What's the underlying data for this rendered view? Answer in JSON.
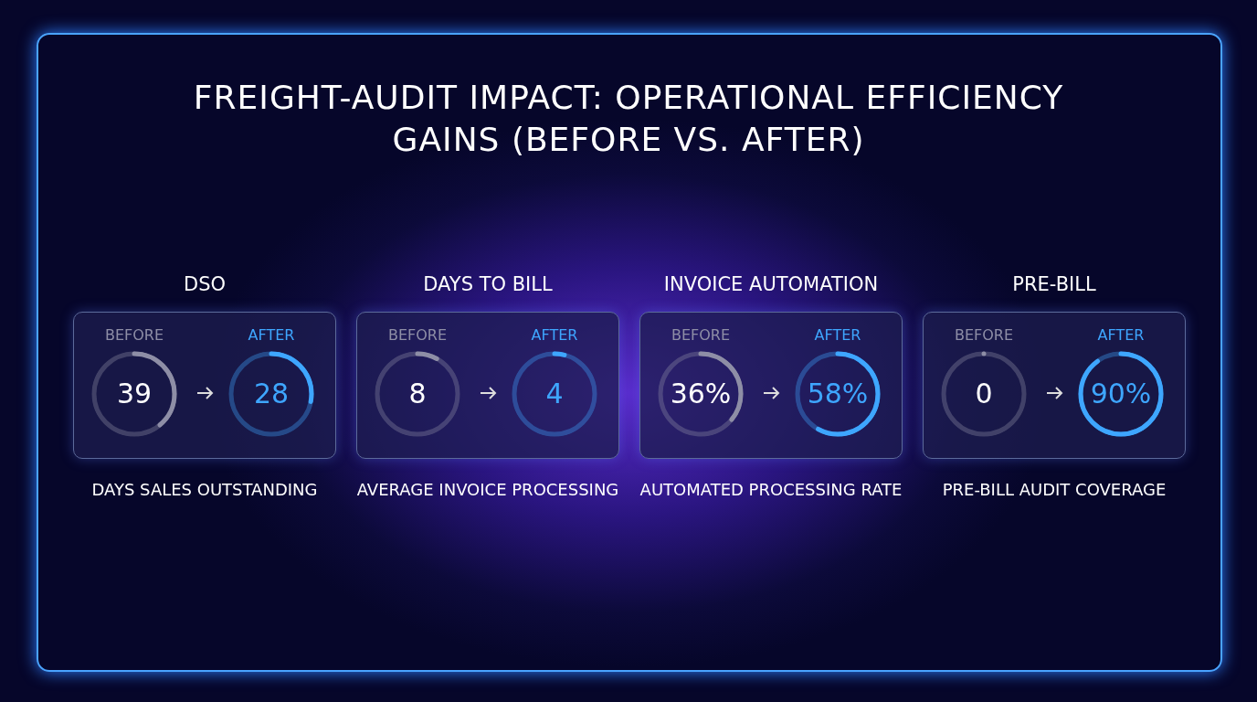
{
  "chart_data": [
    {
      "type": "other",
      "title": "FREIGHT-AUDIT IMPACT: OPERATIONAL EFFICIENCY GAINS (BEFORE VS. AFTER)"
    },
    {
      "type": "other",
      "title": "DSO",
      "categories": [
        "BEFORE",
        "AFTER"
      ],
      "values": [
        39,
        28
      ],
      "value_labels": [
        "39",
        "28"
      ],
      "xlabel": "DAYS SALES OUTSTANDING"
    },
    {
      "type": "other",
      "title": "DAYS TO BILL",
      "categories": [
        "BEFORE",
        "AFTER"
      ],
      "values": [
        8,
        4
      ],
      "value_labels": [
        "8",
        "4"
      ],
      "xlabel": "AVERAGE INVOICE PROCESSING"
    },
    {
      "type": "other",
      "title": "INVOICE AUTOMATION",
      "categories": [
        "BEFORE",
        "AFTER"
      ],
      "values": [
        36,
        58
      ],
      "value_labels": [
        "36%",
        "58%"
      ],
      "xlabel": "AUTOMATED PROCESSING RATE"
    },
    {
      "type": "other",
      "title": "PRE-BILL",
      "categories": [
        "BEFORE",
        "AFTER"
      ],
      "values": [
        0,
        90
      ],
      "value_labels": [
        "0",
        "90%"
      ],
      "xlabel": "PRE-BILL AUDIT COVERAGE"
    }
  ]
}
